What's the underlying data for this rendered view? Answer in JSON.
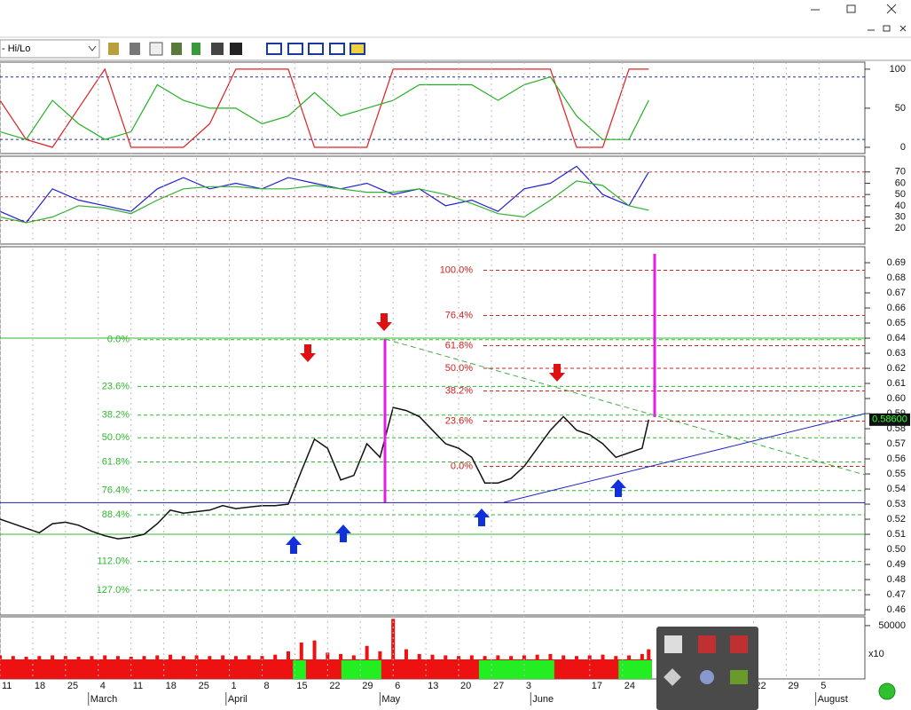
{
  "toolbar": {
    "indicator": "- Hi/Lo"
  },
  "chart_data": [
    {
      "type": "line",
      "xlim": [
        0,
        132
      ],
      "ylim": [
        -8,
        109
      ],
      "yticks": [
        0,
        50,
        100
      ],
      "hlines": [
        {
          "value": 90,
          "color": "#1f2f9f"
        },
        {
          "value": 10,
          "color": "#1f2f9f"
        }
      ],
      "x": [
        0,
        4,
        8,
        12,
        16,
        20,
        24,
        28,
        32,
        36,
        40,
        44,
        48,
        52,
        56,
        60,
        64,
        68,
        72,
        76,
        80,
        84,
        88,
        92,
        96,
        99
      ],
      "series": [
        {
          "color": "#e02020",
          "values": [
            60,
            10,
            0,
            50,
            100,
            0,
            0,
            0,
            30,
            100,
            100,
            100,
            0,
            0,
            0,
            100,
            100,
            100,
            100,
            100,
            100,
            100,
            0,
            0,
            100,
            100
          ]
        },
        {
          "color": "#22b022",
          "values": [
            20,
            10,
            60,
            30,
            10,
            20,
            80,
            60,
            50,
            50,
            30,
            40,
            70,
            40,
            50,
            60,
            80,
            80,
            80,
            60,
            80,
            90,
            40,
            10,
            10,
            60
          ]
        }
      ]
    },
    {
      "type": "line",
      "xlim": [
        0,
        132
      ],
      "ylim": [
        6,
        84
      ],
      "yticks": [
        20,
        30,
        40,
        50,
        60,
        70
      ],
      "hlines": [
        {
          "value": 70,
          "color": "#c03030"
        },
        {
          "value": 48,
          "color": "#c03030"
        },
        {
          "value": 27,
          "color": "#c03030"
        }
      ],
      "x": [
        0,
        4,
        8,
        12,
        16,
        20,
        24,
        28,
        32,
        36,
        40,
        44,
        48,
        52,
        56,
        60,
        64,
        68,
        72,
        76,
        80,
        84,
        88,
        92,
        96,
        99
      ],
      "series": [
        {
          "color": "#2020d0",
          "values": [
            35,
            25,
            55,
            45,
            40,
            35,
            55,
            65,
            55,
            60,
            55,
            65,
            60,
            55,
            60,
            50,
            55,
            40,
            45,
            35,
            55,
            60,
            75,
            50,
            40,
            70
          ]
        },
        {
          "color": "#30b030",
          "values": [
            30,
            25,
            30,
            40,
            38,
            33,
            45,
            55,
            57,
            57,
            55,
            55,
            58,
            55,
            52,
            52,
            55,
            50,
            42,
            33,
            30,
            45,
            62,
            58,
            40,
            36
          ]
        }
      ]
    },
    {
      "type": "line",
      "xlim": [
        0,
        132
      ],
      "ylim": [
        0.4565,
        0.7006
      ],
      "yticks": [
        0.46,
        0.47,
        0.48,
        0.49,
        {
          "value": 0.5,
          "label": "0.50"
        },
        0.51,
        0.52,
        0.53,
        0.54,
        0.55,
        0.56,
        0.57,
        0.58,
        0.59,
        {
          "value": 0.6,
          "label": "0.60"
        },
        0.61,
        0.62,
        0.63,
        0.64,
        0.65,
        0.66,
        0.67,
        0.68,
        0.69
      ],
      "x": [
        0,
        2,
        4,
        6,
        8,
        10,
        12,
        14,
        16,
        18,
        20,
        22,
        24,
        26,
        28,
        30,
        32,
        34,
        36,
        38,
        40,
        42,
        44,
        46,
        48,
        50,
        52,
        54,
        56,
        58,
        60,
        62,
        64,
        66,
        68,
        70,
        72,
        74,
        76,
        78,
        80,
        82,
        84,
        86,
        88,
        90,
        92,
        94,
        96,
        98,
        99
      ],
      "series": [
        {
          "color": "#111111",
          "values": [
            0.52,
            0.517,
            0.514,
            0.511,
            0.517,
            0.518,
            0.516,
            0.512,
            0.509,
            0.507,
            0.508,
            0.51,
            0.517,
            0.526,
            0.524,
            0.525,
            0.526,
            0.529,
            0.527,
            0.528,
            0.529,
            0.529,
            0.53,
            0.552,
            0.573,
            0.567,
            0.546,
            0.549,
            0.57,
            0.561,
            0.594,
            0.592,
            0.588,
            0.579,
            0.57,
            0.567,
            0.561,
            0.544,
            0.544,
            0.547,
            0.555,
            0.567,
            0.579,
            0.588,
            0.579,
            0.576,
            0.57,
            0.561,
            0.564,
            0.567,
            0.586
          ]
        }
      ],
      "fib_sets": [
        {
          "color": "#2db82d",
          "levels": [
            {
              "value": 0.639,
              "label": "0.0%"
            },
            {
              "value": 0.608,
              "label": "23.6%"
            },
            {
              "value": 0.589,
              "label": "38.2%"
            },
            {
              "value": 0.574,
              "label": "50.0%"
            },
            {
              "value": 0.558,
              "label": "61.8%"
            },
            {
              "value": 0.539,
              "label": "76.4%"
            },
            {
              "value": 0.523,
              "label": "88.4%"
            },
            {
              "value": 0.492,
              "label": "112.0%"
            },
            {
              "value": 0.473,
              "label": "127.0%"
            }
          ]
        },
        {
          "color": "#d02020",
          "levels": [
            {
              "value": 0.685,
              "label": "100.0%"
            },
            {
              "value": 0.655,
              "label": "76.4%"
            },
            {
              "value": 0.635,
              "label": "61.8%"
            },
            {
              "value": 0.62,
              "label": "50.0%"
            },
            {
              "value": 0.605,
              "label": "38.2%"
            },
            {
              "value": 0.585,
              "label": "23.6%"
            },
            {
              "value": 0.555,
              "label": "0.0%"
            }
          ]
        }
      ],
      "hlines": [
        {
          "value": 0.64,
          "color": "#2db82d"
        },
        {
          "value": 0.51,
          "color": "#2db82d"
        },
        {
          "value": 0.531,
          "color": "#2020b0"
        }
      ],
      "last_price": {
        "value": 0.586,
        "label": "0.58600"
      }
    },
    {
      "type": "bar",
      "xlim": [
        0,
        132
      ],
      "ylim": [
        0,
        63000
      ],
      "yticks": [
        50000
      ],
      "color": "#ee1111",
      "x": [
        0,
        2,
        4,
        6,
        8,
        10,
        12,
        14,
        16,
        18,
        20,
        22,
        24,
        26,
        28,
        30,
        32,
        34,
        36,
        38,
        40,
        42,
        44,
        46,
        48,
        50,
        52,
        54,
        56,
        58,
        60,
        62,
        64,
        66,
        68,
        70,
        72,
        74,
        76,
        78,
        80,
        82,
        84,
        86,
        88,
        90,
        92,
        94,
        96,
        98,
        99
      ],
      "values": [
        6000,
        5000,
        4000,
        5000,
        6000,
        5000,
        4000,
        5000,
        6000,
        5000,
        4000,
        5000,
        6000,
        7000,
        5000,
        6000,
        5000,
        6000,
        5000,
        6000,
        5000,
        7000,
        12000,
        25000,
        28000,
        10000,
        8000,
        6000,
        20000,
        12000,
        60000,
        15000,
        8000,
        7000,
        6000,
        5000,
        6000,
        5000,
        6000,
        5000,
        6000,
        7000,
        8000,
        6000,
        5000,
        6000,
        7000,
        5000,
        6000,
        8000,
        15000
      ],
      "scale_label": "x10",
      "band": {
        "from": 0,
        "to": 99.5,
        "color": "#ee1111"
      },
      "trend_bands": [
        {
          "from": 44.7,
          "to": 46.7,
          "color": "#22ee22"
        },
        {
          "from": 52.1,
          "to": 58.2,
          "color": "#22ee22"
        },
        {
          "from": 73.1,
          "to": 84.6,
          "color": "#22ee22"
        },
        {
          "from": 94.4,
          "to": 99.5,
          "color": "#22ee22"
        }
      ],
      "xticks": [
        {
          "value": 0,
          "label": "11"
        },
        {
          "value": 5,
          "label": "18"
        },
        {
          "value": 10,
          "label": "25"
        },
        {
          "value": 15,
          "label": "4"
        },
        {
          "value": 20,
          "label": "11"
        },
        {
          "value": 25,
          "label": "18"
        },
        {
          "value": 30,
          "label": "25"
        },
        {
          "value": 35,
          "label": "1"
        },
        {
          "value": 40,
          "label": "8"
        },
        {
          "value": 45,
          "label": "15"
        },
        {
          "value": 50,
          "label": "22"
        },
        {
          "value": 55,
          "label": "29"
        },
        {
          "value": 60,
          "label": "6"
        },
        {
          "value": 65,
          "label": "13"
        },
        {
          "value": 70,
          "label": "20"
        },
        {
          "value": 75,
          "label": "27"
        },
        {
          "value": 80,
          "label": "3"
        },
        {
          "value": 90,
          "label": "17"
        },
        {
          "value": 95,
          "label": "24"
        },
        {
          "value": 115,
          "label": "22"
        },
        {
          "value": 120,
          "label": "29"
        },
        {
          "value": 125,
          "label": "5"
        }
      ],
      "month_ticks": [
        {
          "value": 13.5,
          "label": "March"
        },
        {
          "value": 34.5,
          "label": "April"
        },
        {
          "value": 58,
          "label": "May"
        },
        {
          "value": 81,
          "label": "June"
        },
        {
          "value": 124.5,
          "label": "August"
        }
      ]
    }
  ]
}
